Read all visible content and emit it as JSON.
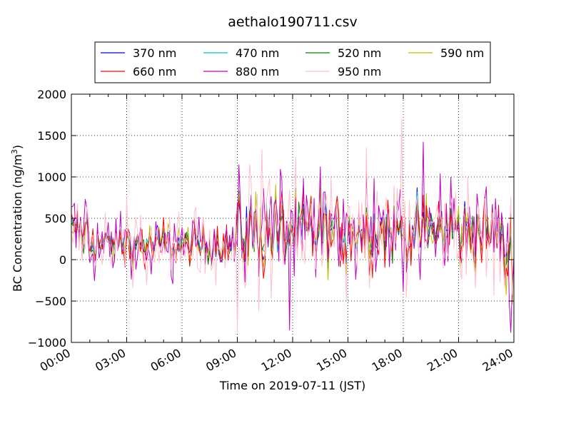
{
  "chart_data": {
    "type": "line",
    "title": "aethalo190711.csv",
    "xlabel": "Time on 2019-07-11 (JST)",
    "ylabel": "BC Concentration (ng/m",
    "ylabel_sup": "3",
    "ylabel_end": ")",
    "xlim": [
      0,
      24
    ],
    "ylim": [
      -1000,
      2000
    ],
    "xticks": [
      0,
      3,
      6,
      9,
      12,
      15,
      18,
      21,
      24
    ],
    "xtick_labels": [
      "00:00",
      "03:00",
      "06:00",
      "09:00",
      "12:00",
      "15:00",
      "18:00",
      "21:00",
      "24:00"
    ],
    "yticks": [
      -1000,
      -500,
      0,
      500,
      1000,
      1500,
      2000
    ],
    "ytick_labels": [
      "−1000",
      "−500",
      "0",
      "500",
      "1000",
      "1500",
      "2000"
    ],
    "grid": true,
    "grid_style": "dotted",
    "legend_position": "top, above plot",
    "legend_columns": 4,
    "series": [
      {
        "name": "370 nm",
        "color": "#0000ff"
      },
      {
        "name": "470 nm",
        "color": "#00bfbf"
      },
      {
        "name": "520 nm",
        "color": "#008000"
      },
      {
        "name": "590 nm",
        "color": "#bfbf00"
      },
      {
        "name": "660 nm",
        "color": "#ff0000"
      },
      {
        "name": "880 nm",
        "color": "#bf00bf"
      },
      {
        "name": "950 nm",
        "color": "#ffc0cb"
      }
    ],
    "sampling_interval_minutes": 5,
    "notable_points": [
      {
        "series": "950 nm",
        "time_hours": 17.9,
        "value": 1700
      },
      {
        "series": "880 nm",
        "time_hours": 19.1,
        "value": 1420
      },
      {
        "series": "950 nm",
        "time_hours": 10.3,
        "value": 1330
      },
      {
        "series": "950 nm",
        "time_hours": 16.0,
        "value": 1350
      },
      {
        "series": "880 nm",
        "time_hours": 11.8,
        "value": -850
      },
      {
        "series": "950 nm",
        "time_hours": 9.0,
        "value": -870
      },
      {
        "series": "880 nm",
        "time_hours": 23.8,
        "value": -880
      }
    ]
  }
}
